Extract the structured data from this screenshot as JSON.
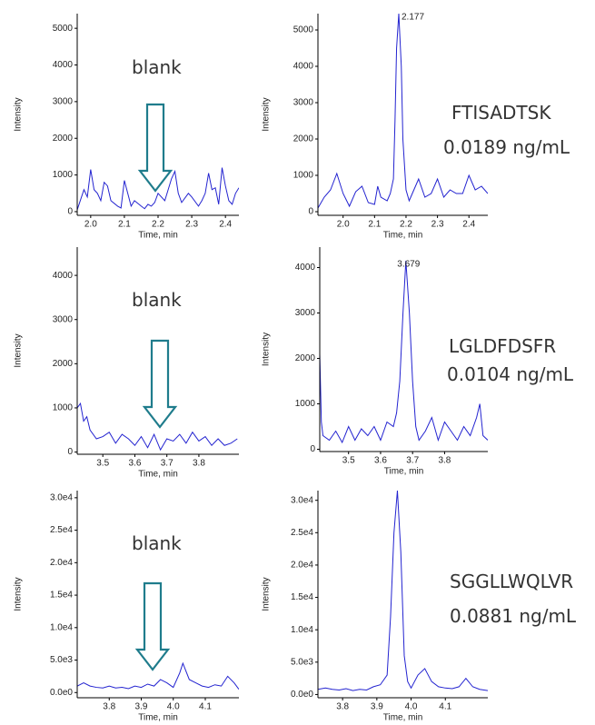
{
  "chart_data": [
    {
      "type": "line",
      "note": "blank",
      "x_label": "Time, min",
      "y_label": "Intensity",
      "color": "#2323d0",
      "x": [
        1.96,
        1.98,
        1.99,
        2.0,
        2.01,
        2.02,
        2.03,
        2.04,
        2.05,
        2.06,
        2.08,
        2.09,
        2.1,
        2.11,
        2.12,
        2.13,
        2.15,
        2.16,
        2.17,
        2.18,
        2.19,
        2.2,
        2.22,
        2.23,
        2.24,
        2.25,
        2.26,
        2.27,
        2.29,
        2.3,
        2.32,
        2.33,
        2.34,
        2.35,
        2.36,
        2.37,
        2.38,
        2.39,
        2.4,
        2.41,
        2.42,
        2.43,
        2.44
      ],
      "values": [
        50,
        600,
        400,
        1150,
        600,
        500,
        300,
        800,
        700,
        300,
        150,
        100,
        850,
        500,
        150,
        300,
        150,
        80,
        200,
        150,
        250,
        500,
        300,
        600,
        900,
        1100,
        500,
        250,
        500,
        400,
        150,
        300,
        500,
        1050,
        600,
        650,
        200,
        1200,
        700,
        300,
        200,
        500,
        650
      ],
      "xlim": [
        1.96,
        2.44
      ],
      "ylim": [
        -100,
        5400
      ],
      "xticks": [
        {
          "value": 2,
          "label": "2.0"
        },
        2.1,
        2.2,
        2.3,
        2.4
      ],
      "yticks": [
        0,
        1000,
        2000,
        3000,
        4000,
        5000
      ]
    },
    {
      "type": "line",
      "peptide": "FTISADTSK",
      "concentration": "0.0189 ng/mL",
      "peak_label": "2.177",
      "x_label": "Time, min",
      "y_label": "Intensity",
      "color": "#2323d0",
      "x": [
        1.92,
        1.94,
        1.96,
        1.98,
        2.0,
        2.02,
        2.04,
        2.06,
        2.08,
        2.1,
        2.11,
        2.12,
        2.14,
        2.15,
        2.16,
        2.165,
        2.17,
        2.177,
        2.185,
        2.19,
        2.2,
        2.21,
        2.22,
        2.24,
        2.26,
        2.28,
        2.3,
        2.32,
        2.34,
        2.36,
        2.38,
        2.4,
        2.42,
        2.44,
        2.46
      ],
      "values": [
        100,
        400,
        600,
        1050,
        500,
        150,
        550,
        700,
        250,
        200,
        700,
        400,
        300,
        500,
        900,
        2500,
        4500,
        5450,
        4000,
        2000,
        600,
        300,
        500,
        900,
        400,
        500,
        900,
        400,
        600,
        500,
        500,
        1000,
        600,
        700,
        500
      ],
      "xlim": [
        1.92,
        2.46
      ],
      "ylim": [
        -100,
        5450
      ],
      "xticks": [
        {
          "value": 2,
          "label": "2.0"
        },
        2.1,
        2.2,
        2.3,
        2.4
      ],
      "yticks": [
        0,
        1000,
        2000,
        3000,
        4000,
        5000
      ]
    },
    {
      "type": "line",
      "note": "blank",
      "x_label": "Time, min",
      "y_label": "Intensity",
      "color": "#2323d0",
      "x": [
        3.42,
        3.43,
        3.44,
        3.45,
        3.46,
        3.48,
        3.5,
        3.52,
        3.54,
        3.56,
        3.58,
        3.6,
        3.62,
        3.64,
        3.66,
        3.68,
        3.7,
        3.72,
        3.74,
        3.76,
        3.78,
        3.8,
        3.82,
        3.84,
        3.86,
        3.88,
        3.9,
        3.92
      ],
      "values": [
        1000,
        1100,
        700,
        800,
        500,
        300,
        350,
        450,
        200,
        400,
        300,
        150,
        350,
        100,
        400,
        50,
        300,
        250,
        400,
        200,
        450,
        250,
        350,
        150,
        300,
        150,
        200,
        300
      ],
      "xlim": [
        3.42,
        3.925
      ],
      "ylim": [
        -50,
        4640
      ],
      "xticks": [
        3.5,
        3.6,
        3.7,
        3.8
      ],
      "yticks": [
        0,
        1000,
        2000,
        3000,
        4000
      ]
    },
    {
      "type": "line",
      "peptide": "LGLDFDSFR",
      "concentration": "0.0104 ng/mL",
      "peak_label": "3.679",
      "x_label": "Time, min",
      "y_label": "Intensity",
      "color": "#2323d0",
      "x": [
        3.41,
        3.415,
        3.42,
        3.44,
        3.46,
        3.48,
        3.5,
        3.52,
        3.54,
        3.56,
        3.58,
        3.6,
        3.62,
        3.64,
        3.65,
        3.66,
        3.67,
        3.679,
        3.69,
        3.7,
        3.71,
        3.72,
        3.74,
        3.76,
        3.78,
        3.8,
        3.82,
        3.84,
        3.86,
        3.88,
        3.9,
        3.91,
        3.92,
        3.935
      ],
      "values": [
        2100,
        600,
        300,
        200,
        400,
        150,
        500,
        200,
        450,
        300,
        500,
        200,
        600,
        500,
        800,
        1500,
        3000,
        4150,
        3000,
        1500,
        500,
        200,
        400,
        700,
        200,
        600,
        400,
        200,
        500,
        300,
        700,
        1000,
        300,
        200
      ],
      "xlim": [
        3.41,
        3.935
      ],
      "ylim": [
        -50,
        4450
      ],
      "xticks": [
        3.5,
        3.6,
        3.7,
        3.8
      ],
      "yticks": [
        0,
        1000,
        2000,
        3000,
        4000
      ]
    },
    {
      "type": "line",
      "note": "blank",
      "x_label": "Time, min",
      "y_label": "Intensity",
      "color": "#2323d0",
      "x": [
        3.7,
        3.72,
        3.74,
        3.76,
        3.78,
        3.8,
        3.82,
        3.84,
        3.86,
        3.88,
        3.9,
        3.92,
        3.94,
        3.96,
        3.98,
        4.0,
        4.02,
        4.03,
        4.05,
        4.07,
        4.09,
        4.11,
        4.13,
        4.15,
        4.17,
        4.19,
        4.205
      ],
      "values": [
        1000,
        1500,
        1000,
        800,
        700,
        1000,
        700,
        800,
        600,
        1000,
        800,
        1300,
        1000,
        2000,
        1500,
        800,
        3000,
        4500,
        2000,
        1500,
        1000,
        800,
        1200,
        1000,
        2500,
        1500,
        500
      ],
      "xlim": [
        3.7,
        4.205
      ],
      "ylim": [
        -800,
        31100
      ],
      "xticks": [
        3.8,
        3.9,
        {
          "value": 4,
          "label": "4.0"
        },
        4.1
      ],
      "yticks": [
        {
          "value": 0,
          "label": "0.0e0"
        },
        {
          "value": 5000,
          "label": "5.0e3"
        },
        {
          "value": 10000,
          "label": "1.0e4"
        },
        {
          "value": 15000,
          "label": "1.5e4"
        },
        {
          "value": 20000,
          "label": "2.0e4"
        },
        {
          "value": 25000,
          "label": "2.5e4"
        },
        {
          "value": 30000,
          "label": "3.0e4"
        }
      ]
    },
    {
      "type": "line",
      "peptide": "SGGLLWQLVR",
      "concentration": "0.0881 ng/mL",
      "x_label": "Time, min",
      "y_label": "Intensity",
      "color": "#2323d0",
      "x": [
        3.728,
        3.75,
        3.77,
        3.79,
        3.81,
        3.83,
        3.85,
        3.87,
        3.89,
        3.91,
        3.93,
        3.94,
        3.95,
        3.96,
        3.97,
        3.98,
        3.99,
        4.0,
        4.02,
        4.04,
        4.06,
        4.08,
        4.1,
        4.12,
        4.14,
        4.16,
        4.18,
        4.2,
        4.224
      ],
      "values": [
        800,
        1000,
        800,
        700,
        900,
        600,
        800,
        700,
        1200,
        1500,
        3000,
        12000,
        25000,
        31500,
        22000,
        6000,
        2000,
        1000,
        3000,
        4000,
        2000,
        1200,
        1000,
        900,
        1200,
        2500,
        1200,
        800,
        600
      ],
      "xlim": [
        3.728,
        4.224
      ],
      "ylim": [
        -500,
        31500
      ],
      "xticks": [
        3.8,
        3.9,
        {
          "value": 4,
          "label": "4.0"
        },
        4.1
      ],
      "yticks": [
        {
          "value": 0,
          "label": "0.0e0"
        },
        {
          "value": 5000,
          "label": "5.0e3"
        },
        {
          "value": 10000,
          "label": "1.0e4"
        },
        {
          "value": 15000,
          "label": "1.5e4"
        },
        {
          "value": 20000,
          "label": "2.0e4"
        },
        {
          "value": 25000,
          "label": "2.5e4"
        },
        {
          "value": 30000,
          "label": "3.0e4"
        }
      ]
    }
  ]
}
